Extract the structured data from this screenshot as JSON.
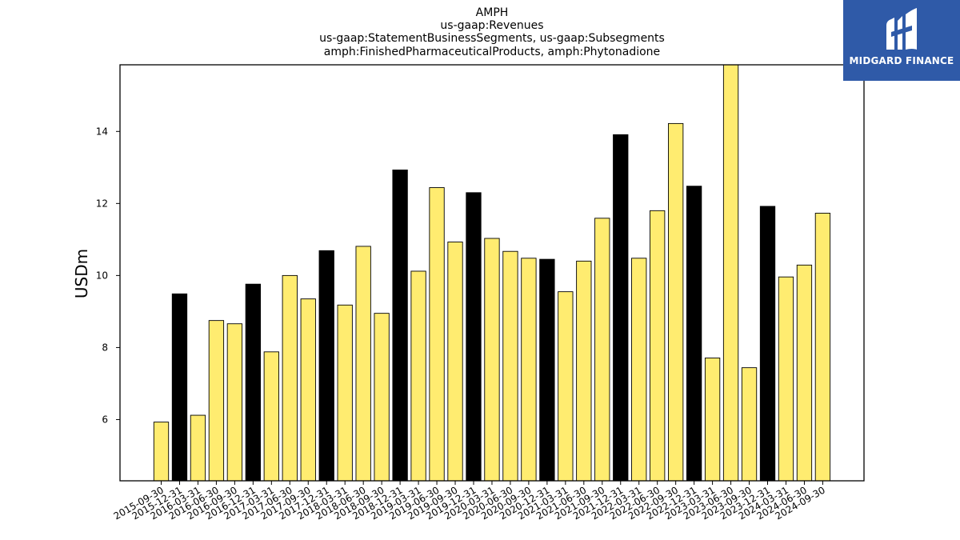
{
  "chart_data": {
    "type": "bar",
    "title_lines": [
      "AMPH",
      "us-gaap:Revenues",
      "us-gaap:StatementBusinessSegments, us-gaap:Subsegments",
      "amph:FinishedPharmaceuticalProducts, amph:Phytonadione"
    ],
    "ylabel": "USDm",
    "xlabel": "",
    "ylim": [
      4.3,
      15.85
    ],
    "yticks": [
      6,
      8,
      10,
      12,
      14
    ],
    "grid": false,
    "categories": [
      "2015-09-30",
      "2015-12-31",
      "2016-03-31",
      "2016-06-30",
      "2016-09-30",
      "2016-12-31",
      "2017-03-31",
      "2017-06-30",
      "2017-09-30",
      "2017-12-31",
      "2018-03-31",
      "2018-06-30",
      "2018-09-30",
      "2018-12-31",
      "2019-03-31",
      "2019-06-30",
      "2019-09-30",
      "2019-12-31",
      "2020-03-31",
      "2020-06-30",
      "2020-09-30",
      "2020-12-31",
      "2021-03-31",
      "2021-06-30",
      "2021-09-30",
      "2021-12-31",
      "2022-03-31",
      "2022-06-30",
      "2022-09-30",
      "2022-12-31",
      "2023-03-31",
      "2023-06-30",
      "2023-09-30",
      "2023-12-31",
      "2024-03-31",
      "2024-06-30",
      "2024-09-30"
    ],
    "values": [
      5.93,
      9.49,
      6.12,
      8.75,
      8.66,
      9.76,
      7.88,
      10.0,
      9.35,
      10.69,
      9.18,
      10.81,
      8.95,
      12.93,
      10.12,
      12.44,
      10.93,
      12.3,
      11.03,
      10.67,
      10.48,
      10.45,
      9.55,
      10.4,
      11.59,
      13.91,
      10.48,
      11.8,
      14.22,
      12.48,
      7.71,
      15.85,
      7.44,
      11.92,
      9.96,
      10.29,
      11.73
    ],
    "bar_colors": {
      "quarter": "#ffec70",
      "year_end": "#000000",
      "edge": "#000000"
    }
  },
  "brand": {
    "name": "MIDGARD FINANCE",
    "background": "#2f5aa8"
  }
}
